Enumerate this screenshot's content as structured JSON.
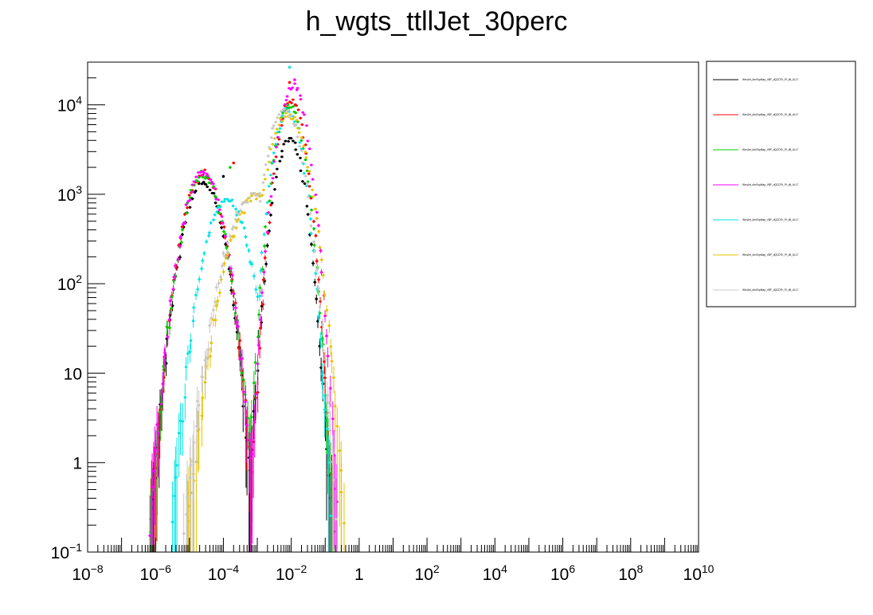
{
  "chart_data": {
    "type": "scatter",
    "title": "h_wgts_ttllJet_30perc",
    "xlabel": "",
    "ylabel": "",
    "x_scale": "log",
    "y_scale": "log",
    "xlim": [
      1e-08,
      10000000000.0
    ],
    "ylim": [
      0.1,
      30000
    ],
    "grid": false,
    "legend_position": "top-right",
    "x_tick_labels": [
      {
        "base": "10",
        "exp": "−8",
        "value": 1e-08
      },
      {
        "base": "10",
        "exp": "−6",
        "value": 1e-06
      },
      {
        "base": "10",
        "exp": "−4",
        "value": 0.0001
      },
      {
        "base": "10",
        "exp": "−2",
        "value": 0.01
      },
      {
        "base": "1",
        "exp": "",
        "value": 1
      },
      {
        "base": "10",
        "exp": "2",
        "value": 100
      },
      {
        "base": "10",
        "exp": "4",
        "value": 10000.0
      },
      {
        "base": "10",
        "exp": "6",
        "value": 1000000.0
      },
      {
        "base": "10",
        "exp": "8",
        "value": 100000000.0
      },
      {
        "base": "10",
        "exp": "10",
        "value": 10000000000.0
      }
    ],
    "y_tick_labels": [
      {
        "base": "10",
        "exp": "−1",
        "value": 0.1
      },
      {
        "base": "1",
        "exp": "",
        "value": 1
      },
      {
        "base": "10",
        "exp": "",
        "value": 10
      },
      {
        "base": "10",
        "exp": "2",
        "value": 100
      },
      {
        "base": "10",
        "exp": "3",
        "value": 1000
      },
      {
        "base": "10",
        "exp": "4",
        "value": 10000
      }
    ],
    "series": [
      {
        "name": "WeuJet_dimTopMap_VBF_dQCDTh_Pt_ttll_UL17",
        "color": "#000000",
        "peaks": [
          {
            "logx": -4.6,
            "logw": 0.55,
            "logy": 3.12
          },
          {
            "logx": -2.05,
            "logw": 0.42,
            "logy": 3.62
          }
        ],
        "spikes": [
          {
            "logx": -4.0,
            "logy": 3.2
          }
        ]
      },
      {
        "name": "WeuJet_dimTopMap_VBF_dQCDTh_Pt_ttll_UL17",
        "color": "#ff0000",
        "peaks": [
          {
            "logx": -4.6,
            "logw": 0.55,
            "logy": 3.22
          },
          {
            "logx": -2.0,
            "logw": 0.4,
            "logy": 4.05
          }
        ],
        "spikes": [
          {
            "logx": -3.7,
            "logy": 3.35
          },
          {
            "logx": -2.05,
            "logy": 4.25
          }
        ]
      },
      {
        "name": "WeuJet_dimTopMap_VBF_dQCDTh_Pt_ttll_UL17",
        "color": "#00cc00",
        "peaks": [
          {
            "logx": -4.6,
            "logw": 0.55,
            "logy": 3.2
          },
          {
            "logx": -2.05,
            "logw": 0.42,
            "logy": 4.0
          }
        ],
        "spikes": [
          {
            "logx": -3.8,
            "logy": 3.3
          }
        ]
      },
      {
        "name": "WeuJet_dimTopMap_VBF_dQCDTh_Pt_ttll_UL17",
        "color": "#ff00ff",
        "peaks": [
          {
            "logx": -4.6,
            "logw": 0.55,
            "logy": 3.25
          },
          {
            "logx": -1.95,
            "logw": 0.42,
            "logy": 4.2
          }
        ],
        "spikes": [
          {
            "logx": -1.9,
            "logy": 4.28
          }
        ]
      },
      {
        "name": "WeuJet_dimTopMap_VBF_dQCDTh_Pt_ttll_UL17",
        "color": "#00e5e5",
        "peaks": [
          {
            "logx": -3.9,
            "logw": 0.6,
            "logy": 2.95
          },
          {
            "logx": -2.1,
            "logw": 0.42,
            "logy": 3.95
          }
        ],
        "spikes": [
          {
            "logx": -2.05,
            "logy": 4.42
          }
        ]
      },
      {
        "name": "WeuJet_dimTopMap_VBF_dQCDTh_Pt_ttll_UL17",
        "color": "#e8c200",
        "peaks": [
          {
            "logx": -3.0,
            "logw": 0.75,
            "logy": 3.0
          },
          {
            "logx": -2.1,
            "logw": 0.55,
            "logy": 3.9
          }
        ],
        "spikes": []
      },
      {
        "name": "WeuJet_dimTopMap_VBF_dQCDTh_Pt_ttll_UL17",
        "color": "#c8c8c8",
        "peaks": [
          {
            "logx": -3.1,
            "logw": 0.75,
            "logy": 3.0
          },
          {
            "logx": -2.2,
            "logw": 0.5,
            "logy": 3.95
          }
        ],
        "spikes": []
      }
    ]
  }
}
